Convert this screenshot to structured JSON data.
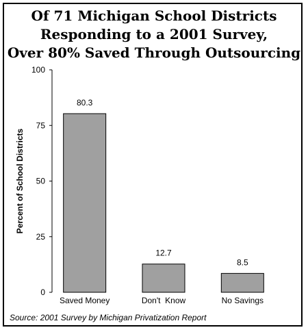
{
  "chart_data": {
    "type": "bar",
    "title": [
      "Of 71 Michigan School Districts",
      "Responding to a 2001 Survey,",
      "Over 80% Saved Through Outsourcing"
    ],
    "categories": [
      "Saved Money",
      "Don't  Know",
      "No Savings"
    ],
    "values": [
      80.3,
      12.7,
      8.5
    ],
    "value_labels": [
      "80.3",
      "12.7",
      "8.5"
    ],
    "ylabel": "Percent of School Districts",
    "xlabel": "",
    "ylim": [
      0,
      100
    ],
    "yticks": [
      0,
      25,
      50,
      75,
      100
    ],
    "grid": false,
    "bar_color": "#a0a0a0",
    "source": "Source: 2001 Survey by Michigan Privatization Report"
  }
}
